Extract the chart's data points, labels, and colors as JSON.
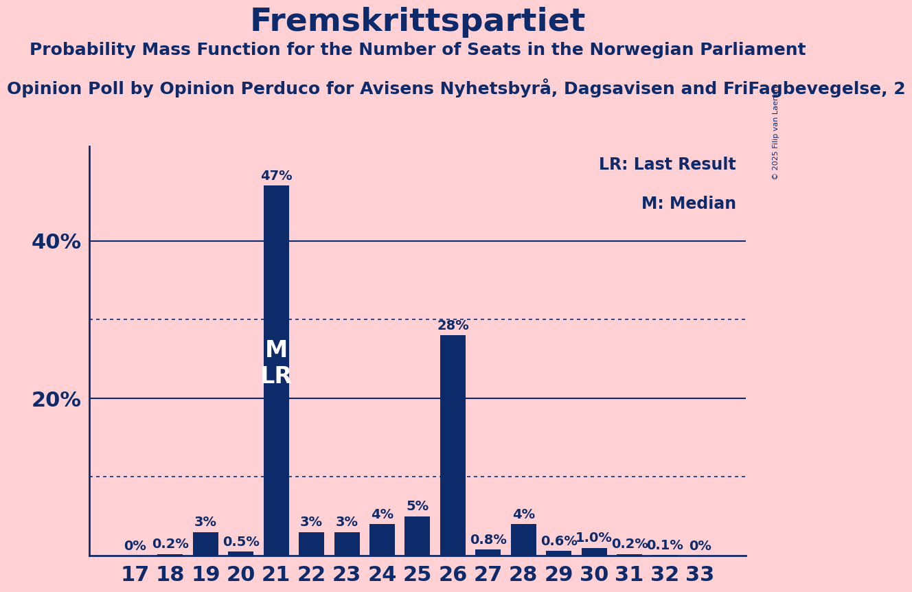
{
  "title": "Fremskrittspartiet",
  "subtitle": "Probability Mass Function for the Number of Seats in the Norwegian Parliament",
  "source_line": "Opinion Poll by Opinion Perduco for Avisens Nyhetsbyrå, Dagsavisen and FriFagbevegelse, 2",
  "copyright": "© 2025 Filip van Laenen",
  "bg_color": "#FFD0D4",
  "bar_color": "#0D2B6B",
  "text_color": "#0D2B6B",
  "seats": [
    17,
    18,
    19,
    20,
    21,
    22,
    23,
    24,
    25,
    26,
    27,
    28,
    29,
    30,
    31,
    32,
    33
  ],
  "probabilities": [
    0.0,
    0.2,
    3.0,
    0.5,
    47.0,
    3.0,
    3.0,
    4.0,
    5.0,
    28.0,
    0.8,
    4.0,
    0.6,
    1.0,
    0.2,
    0.1,
    0.0
  ],
  "labels": [
    "0%",
    "0.2%",
    "3%",
    "0.5%",
    "47%",
    "3%",
    "3%",
    "4%",
    "5%",
    "28%",
    "0.8%",
    "4%",
    "0.6%",
    "1.0%",
    "0.2%",
    "0.1%",
    "0%"
  ],
  "median_seat": 21,
  "lr_seat": 21,
  "legend_lr": "LR: Last Result",
  "legend_m": "M: Median",
  "ylim": [
    0,
    52
  ],
  "solid_grid_lines": [
    20,
    40
  ],
  "dotted_grid_lines": [
    10,
    30
  ],
  "title_fontsize": 34,
  "subtitle_fontsize": 18,
  "source_fontsize": 18,
  "bar_label_fontsize": 14,
  "xtick_fontsize": 22,
  "ytick_fontsize": 22,
  "legend_fontsize": 17,
  "copyright_fontsize": 8
}
